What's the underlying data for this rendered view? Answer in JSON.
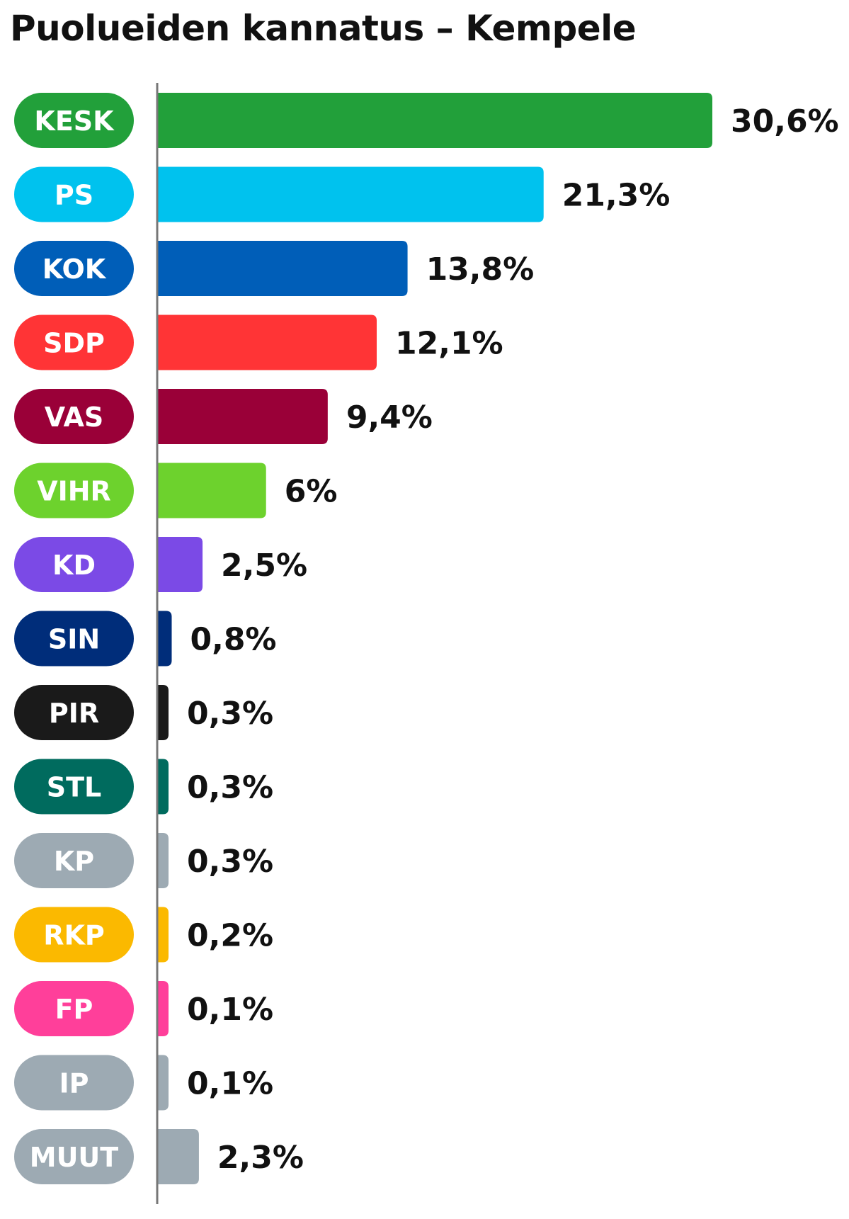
{
  "chart_data": {
    "type": "bar",
    "orientation": "horizontal",
    "title": "Puolueiden kannatus – Kempele",
    "xlabel": "",
    "ylabel": "",
    "grid": false,
    "legend": "none",
    "xlim": [
      0,
      30.6
    ],
    "categories": [
      "KESK",
      "PS",
      "KOK",
      "SDP",
      "VAS",
      "VIHR",
      "KD",
      "SIN",
      "PIR",
      "STL",
      "KP",
      "RKP",
      "FP",
      "IP",
      "MUUT"
    ],
    "values": [
      30.6,
      21.3,
      13.8,
      12.1,
      9.4,
      6,
      2.5,
      0.8,
      0.3,
      0.3,
      0.3,
      0.2,
      0.1,
      0.1,
      2.3
    ],
    "value_labels": [
      "30,6%",
      "21,3%",
      "13,8%",
      "12,1%",
      "9,4%",
      "6%",
      "2,5%",
      "0,8%",
      "0,3%",
      "0,3%",
      "0,3%",
      "0,2%",
      "0,1%",
      "0,1%",
      "2,3%"
    ],
    "colors": [
      "#22a03a",
      "#00c2ee",
      "#005eb8",
      "#ff3436",
      "#9a0038",
      "#6dd22d",
      "#7b4ae6",
      "#002d7a",
      "#1a1a1a",
      "#006b5e",
      "#9daab3",
      "#fbb900",
      "#ff3f9a",
      "#9daab3",
      "#9daab3"
    ]
  }
}
